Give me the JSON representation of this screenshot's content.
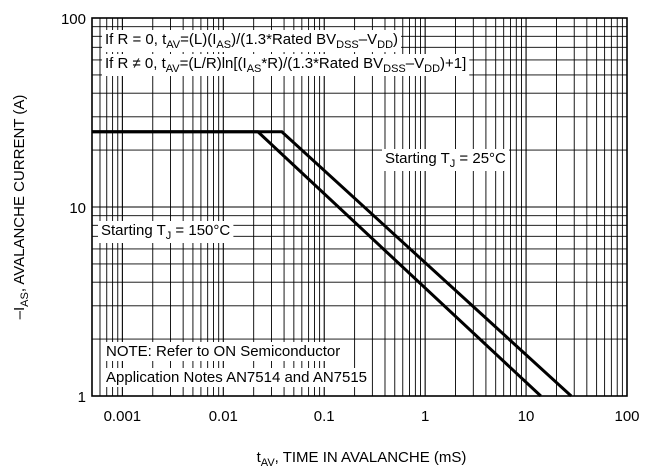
{
  "chart_data": {
    "type": "line",
    "x_scale": "log",
    "y_scale": "log",
    "xlim": [
      0.0005,
      100
    ],
    "ylim": [
      1,
      100
    ],
    "grid": true,
    "x_ticks": [
      0.001,
      0.01,
      0.1,
      1,
      10,
      100
    ],
    "x_tick_labels": [
      "0.001",
      "0.01",
      "0.1",
      "1",
      "10",
      "100"
    ],
    "y_ticks": [
      1,
      10,
      100
    ],
    "y_tick_labels": [
      "1",
      "10",
      "100"
    ],
    "xlabel": {
      "main": "t",
      "sub": "AV",
      "rest": ", TIME IN AVALANCHE (mS)"
    },
    "ylabel": {
      "pre": "–I",
      "sub": "AS",
      "rest": ", AVALANCHE CURRENT (A)"
    },
    "series": [
      {
        "points": [
          [
            0.0005,
            25
          ],
          [
            0.038,
            25
          ],
          [
            28,
            1
          ]
        ]
      },
      {
        "points": [
          [
            0.0005,
            25
          ],
          [
            0.022,
            25
          ],
          [
            14,
            1
          ]
        ]
      }
    ],
    "annotations": {
      "formula_r0": {
        "parts": [
          [
            "If R = 0, t",
            ""
          ],
          [
            "AV",
            "sub"
          ],
          [
            "=(L)(I",
            ""
          ],
          [
            "AS",
            "sub"
          ],
          [
            ")/(1.3*Rated BV",
            ""
          ],
          [
            "DSS",
            "sub"
          ],
          [
            "–V",
            ""
          ],
          [
            "DD",
            "sub"
          ],
          [
            ")",
            ""
          ]
        ]
      },
      "formula_rn0": {
        "parts": [
          [
            "If R ≠ 0, t",
            ""
          ],
          [
            "AV",
            "sub"
          ],
          [
            "=(L/R)ln[(I",
            ""
          ],
          [
            "AS",
            "sub"
          ],
          [
            "*R)/(1.3*Rated BV",
            ""
          ],
          [
            "DSS",
            "sub"
          ],
          [
            "–V",
            ""
          ],
          [
            "DD",
            "sub"
          ],
          [
            ")+1]",
            ""
          ]
        ]
      },
      "label_25": {
        "parts": [
          [
            "Starting T",
            ""
          ],
          [
            "J",
            "sub"
          ],
          [
            " = 25°C",
            ""
          ]
        ]
      },
      "label_150": {
        "parts": [
          [
            "Starting T",
            ""
          ],
          [
            "J",
            "sub"
          ],
          [
            " = 150°C",
            ""
          ]
        ]
      },
      "note_line1": "NOTE: Refer to ON Semiconductor",
      "note_line2": "Application Notes AN7514 and AN7515"
    }
  }
}
